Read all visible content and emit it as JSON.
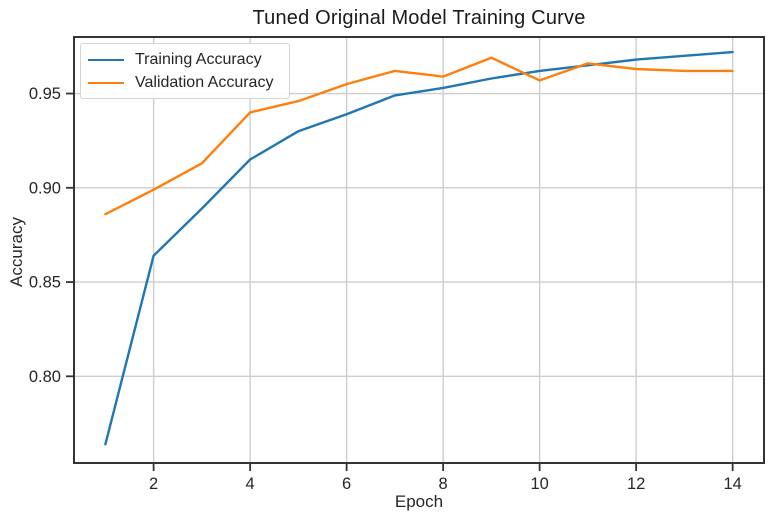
{
  "chart_data": {
    "type": "line",
    "title": "Tuned Original Model Training Curve",
    "xlabel": "Epoch",
    "ylabel": "Accuracy",
    "x": [
      1,
      2,
      3,
      4,
      5,
      6,
      7,
      8,
      9,
      10,
      11,
      12,
      13,
      14
    ],
    "series": [
      {
        "name": "Training Accuracy",
        "color": "#1f77b4",
        "values": [
          0.764,
          0.864,
          0.889,
          0.915,
          0.93,
          0.939,
          0.949,
          0.953,
          0.958,
          0.962,
          0.965,
          0.968,
          0.97,
          0.972
        ]
      },
      {
        "name": "Validation Accuracy",
        "color": "#ff7f0e",
        "values": [
          0.886,
          0.899,
          0.913,
          0.94,
          0.946,
          0.955,
          0.962,
          0.959,
          0.969,
          0.957,
          0.966,
          0.963,
          0.962,
          0.962
        ]
      }
    ],
    "xticks": [
      2,
      4,
      6,
      8,
      10,
      12,
      14
    ],
    "yticks": [
      0.8,
      0.85,
      0.9,
      0.95
    ],
    "xlim": [
      0.35,
      14.65
    ],
    "ylim": [
      0.754,
      0.98
    ],
    "grid": true,
    "legend_position": "upper left",
    "grid_color": "#cdcdcd",
    "spine_color": "#333333",
    "text_color": "#262626"
  }
}
